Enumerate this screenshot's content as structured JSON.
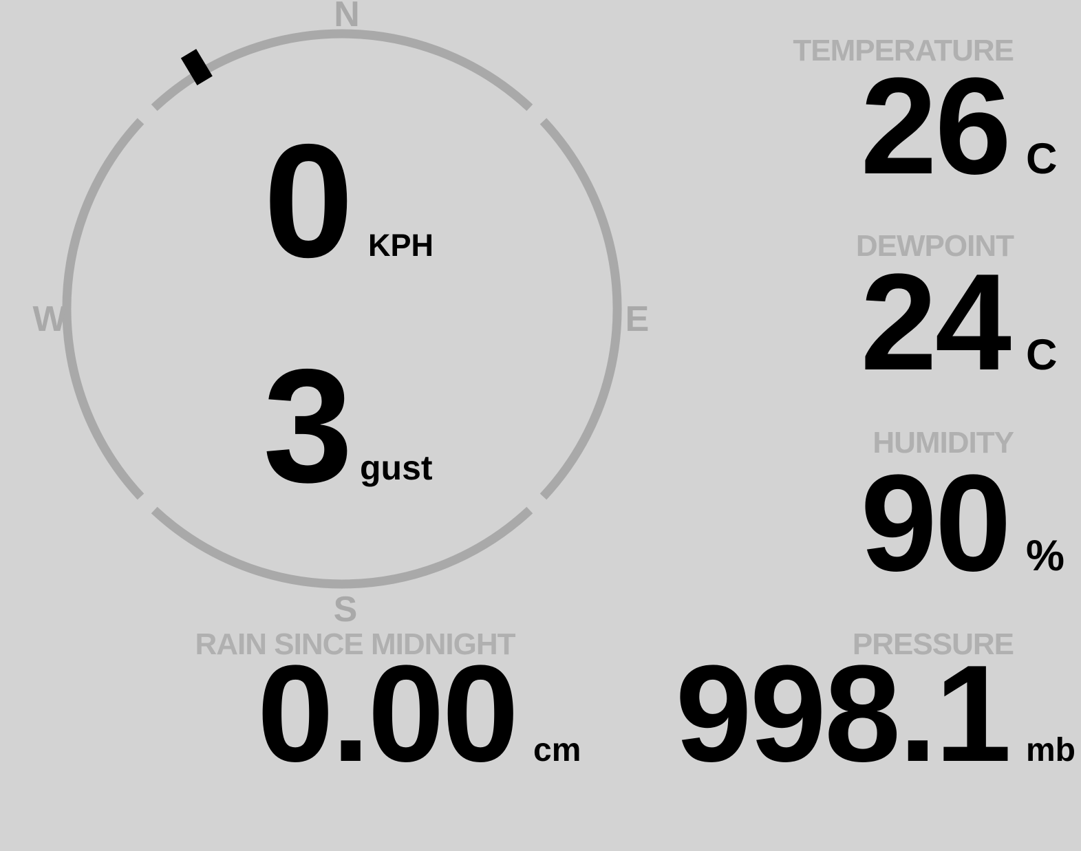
{
  "display": {
    "background_color": "#d3d3d3",
    "muted_gray": "#b0b0b0",
    "ring_gray": "#a9a9a9",
    "text_black": "#000000"
  },
  "wind": {
    "speed": "0",
    "speed_unit": "KPH",
    "gust": "3",
    "gust_label": "gust",
    "direction_deg": -31,
    "cardinals": {
      "north": "N",
      "east": "E",
      "south": "S",
      "west": "W"
    }
  },
  "metrics": {
    "temperature": {
      "label": "TEMPERATURE",
      "value": "26",
      "unit": "C"
    },
    "dewpoint": {
      "label": "DEWPOINT",
      "value": "24",
      "unit": "C"
    },
    "humidity": {
      "label": "HUMIDITY",
      "value": "90",
      "unit": "%"
    },
    "pressure": {
      "label": "PRESSURE",
      "value": "998.1",
      "unit": "mb"
    },
    "rain": {
      "label": "RAIN SINCE MIDNIGHT",
      "value": "0.00",
      "unit": "cm"
    }
  }
}
